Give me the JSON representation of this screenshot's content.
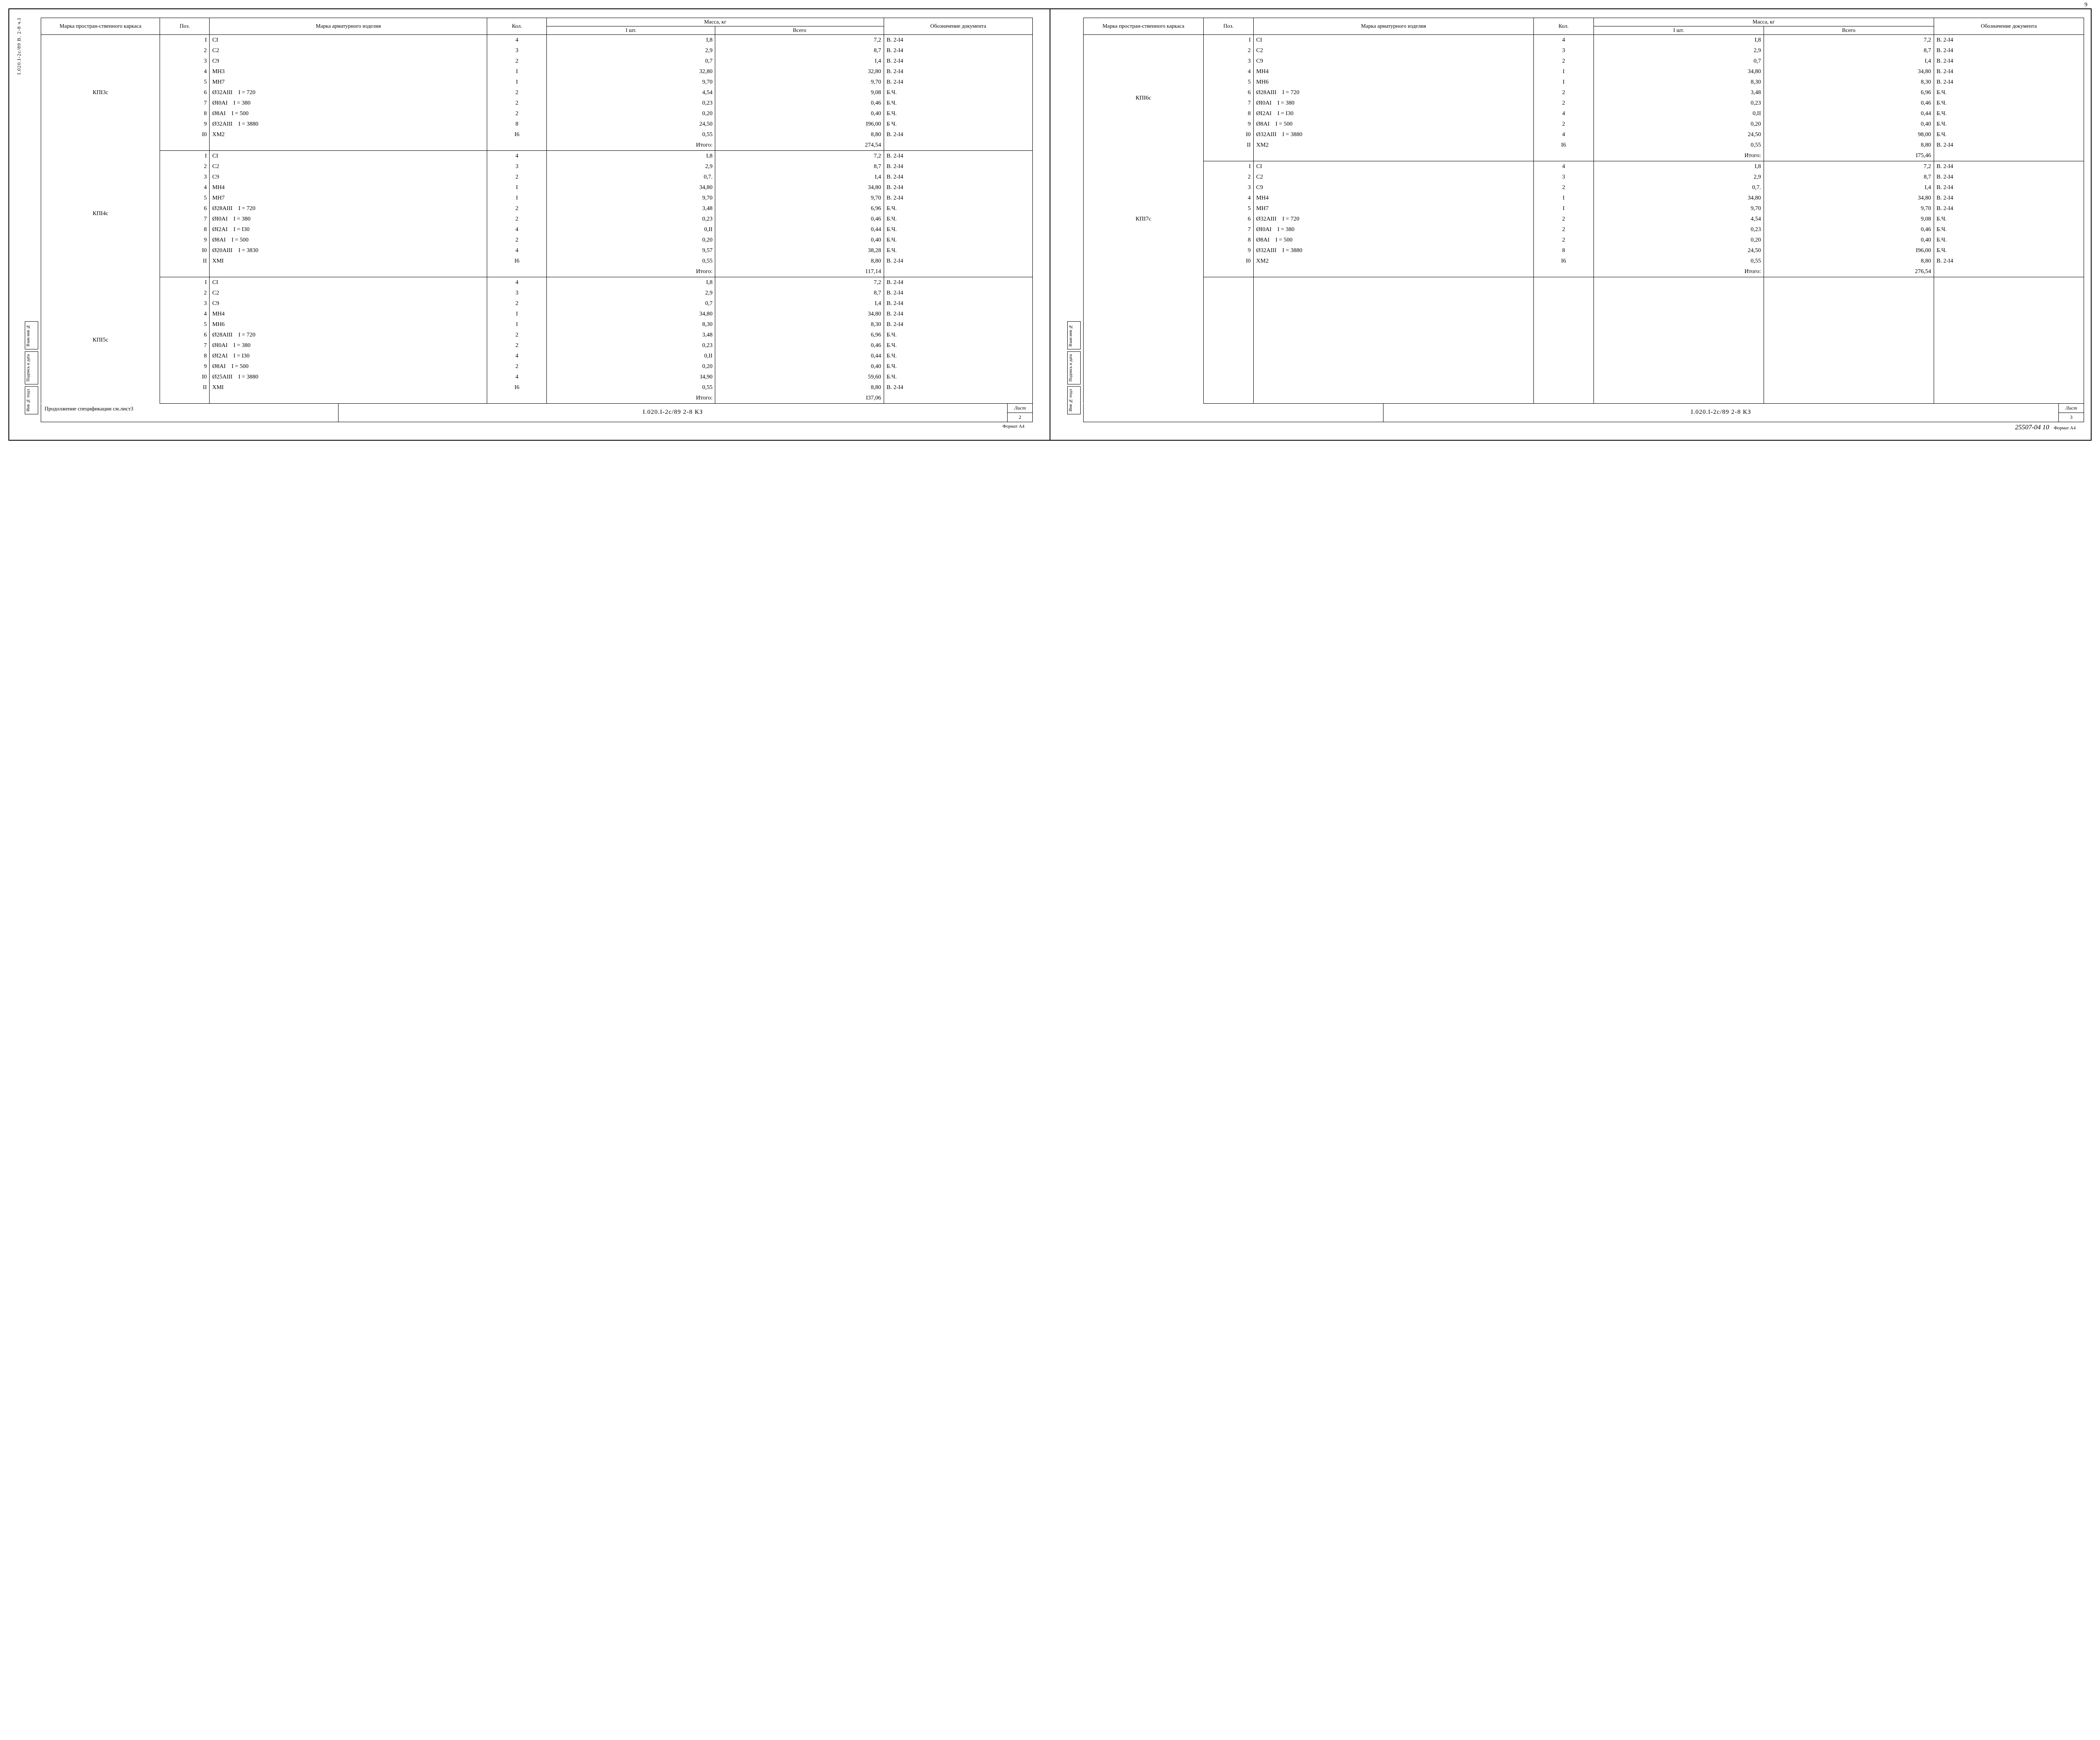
{
  "top_page_no": "9",
  "headers": {
    "mark": "Марка простран-ственного каркаса",
    "pos": "Поз.",
    "item": "Марка арматурного изделия",
    "qty": "Кол.",
    "mass": "Масса, кг",
    "mass1": "I шт.",
    "massT": "Всего",
    "doc": "Обозначение документа"
  },
  "itogo": "Итого:",
  "left_vlabel": "I.020.I-2с/89   В. 2-8  ч.I",
  "sidebar": [
    "Инв № подл",
    "Подпись и дата",
    "Взам инв №"
  ],
  "sections_left": [
    {
      "mark": "КПI3с",
      "rows": [
        {
          "pos": "I",
          "item": "СI",
          "qty": "4",
          "m1": "I,8",
          "mt": "7,2",
          "doc": "В. 2-I4"
        },
        {
          "pos": "2",
          "item": "С2",
          "qty": "3",
          "m1": "2,9",
          "mt": "8,7",
          "doc": "В. 2-I4"
        },
        {
          "pos": "3",
          "item": "С9",
          "qty": "2",
          "m1": "0,7",
          "mt": "I,4",
          "doc": "В. 2-I4"
        },
        {
          "pos": "4",
          "item": "МН3",
          "qty": "I",
          "m1": "32,80",
          "mt": "32,80",
          "doc": "В. 2-I4"
        },
        {
          "pos": "5",
          "item": "МН7",
          "qty": "I",
          "m1": "9,70",
          "mt": "9,70",
          "doc": "В. 2-I4"
        },
        {
          "pos": "6",
          "item": "Ø32АIII",
          "param": "I = 720",
          "qty": "2",
          "m1": "4,54",
          "mt": "9,08",
          "doc": "Б.Ч."
        },
        {
          "pos": "7",
          "item": "ØI0АI",
          "param": "I = 380",
          "qty": "2",
          "m1": "0,23",
          "mt": "0,46",
          "doc": "Б.Ч."
        },
        {
          "pos": "8",
          "item": "Ø8АI",
          "param": "I = 500",
          "qty": "2",
          "m1": "0,20",
          "mt": "0,40",
          "doc": "Б.Ч."
        },
        {
          "pos": "9",
          "item": "Ø32АIII",
          "param": "I = 3880",
          "qty": "8",
          "m1": "24,50",
          "mt": "I96,00",
          "doc": "Б Ч."
        },
        {
          "pos": "I0",
          "item": "ХМ2",
          "qty": "I6",
          "m1": "0,55",
          "mt": "8,80",
          "doc": "В. 2-I4"
        }
      ],
      "total": "274,54"
    },
    {
      "mark": "КПI4с",
      "rows": [
        {
          "pos": "I",
          "item": "СI",
          "qty": "4",
          "m1": "I,8",
          "mt": "7,2",
          "doc": "В. 2-I4"
        },
        {
          "pos": "2",
          "item": "С2",
          "qty": "3",
          "m1": "2,9",
          "mt": "8,7",
          "doc": "В. 2-I4"
        },
        {
          "pos": "3",
          "item": "С9",
          "qty": "2",
          "m1": "0,7.",
          "mt": "I,4",
          "doc": "В. 2-I4"
        },
        {
          "pos": "4",
          "item": "МН4",
          "qty": "I",
          "m1": "34,80",
          "mt": "34,80",
          "doc": "В. 2-I4"
        },
        {
          "pos": "5",
          "item": "МН7",
          "qty": "I",
          "m1": "9,70",
          "mt": "9,70",
          "doc": "В. 2-I4"
        },
        {
          "pos": "6",
          "item": "Ø28АIII",
          "param": "I = 720",
          "qty": "2",
          "m1": "3,48",
          "mt": "6,96",
          "doc": "Б.Ч."
        },
        {
          "pos": "7",
          "item": "ØI0АI",
          "param": "I = 380",
          "qty": "2",
          "m1": "0,23",
          "mt": "0,46",
          "doc": "Б.Ч."
        },
        {
          "pos": "8",
          "item": "ØI2АI",
          "param": "I = I30",
          "qty": "4",
          "m1": "0,II",
          "mt": "0,44",
          "doc": "Б.Ч."
        },
        {
          "pos": "9",
          "item": "Ø8АI",
          "param": "I = 500",
          "qty": "2",
          "m1": "0,20",
          "mt": "0,40",
          "doc": "Б.Ч."
        },
        {
          "pos": "I0",
          "item": "Ø20АIII",
          "param": "I = 3830",
          "qty": "4",
          "m1": "9,57",
          "mt": "38,28",
          "doc": "Б.Ч."
        },
        {
          "pos": "II",
          "item": "ХМI",
          "qty": "I6",
          "m1": "0,55",
          "mt": "8,80",
          "doc": "В. 2-I4"
        }
      ],
      "total": "117,14"
    },
    {
      "mark": "КПI5с",
      "rows": [
        {
          "pos": "I",
          "item": "СI",
          "qty": "4",
          "m1": "I,8",
          "mt": "7,2",
          "doc": "В. 2-I4"
        },
        {
          "pos": "2",
          "item": "С2",
          "qty": "3",
          "m1": "2,9",
          "mt": "8,7",
          "doc": "В. 2-I4"
        },
        {
          "pos": "3",
          "item": "С9",
          "qty": "2",
          "m1": "0,7",
          "mt": "I,4",
          "doc": "В. 2-I4"
        },
        {
          "pos": "4",
          "item": "МН4",
          "qty": "I",
          "m1": "34,80",
          "mt": "34,80",
          "doc": "В. 2-I4"
        },
        {
          "pos": "5",
          "item": "МН6",
          "qty": "I",
          "m1": "8,30",
          "mt": "8,30",
          "doc": "В. 2-I4"
        },
        {
          "pos": "6",
          "item": "Ø28АIII",
          "param": "I = 720",
          "qty": "2",
          "m1": "3,48",
          "mt": "6,96",
          "doc": "Б.Ч."
        },
        {
          "pos": "7",
          "item": "ØI0АI",
          "param": "I = 380",
          "qty": "2",
          "m1": "0,23",
          "mt": "0,46",
          "doc": "Б.Ч."
        },
        {
          "pos": "8",
          "item": "ØI2АI",
          "param": "I = I30",
          "qty": "4",
          "m1": "0,II",
          "mt": "0,44",
          "doc": "Б.Ч."
        },
        {
          "pos": "9",
          "item": "Ø8АI",
          "param": "I = 500",
          "qty": "2",
          "m1": "0,20",
          "mt": "0,40",
          "doc": "Б.Ч."
        },
        {
          "pos": "I0",
          "item": "Ø25АIII",
          "param": "I = 3880",
          "qty": "4",
          "m1": "I4,90",
          "mt": "59,60",
          "doc": "Б.Ч."
        },
        {
          "pos": "II",
          "item": "ХМI",
          "qty": "I6",
          "m1": "0,55",
          "mt": "8,80",
          "doc": "В. 2-I4"
        }
      ],
      "total": "I37,06"
    }
  ],
  "sections_right": [
    {
      "mark": "КПI6с",
      "rows": [
        {
          "pos": "I",
          "item": "СI",
          "qty": "4",
          "m1": "I,8",
          "mt": "7,2",
          "doc": "В. 2-I4"
        },
        {
          "pos": "2",
          "item": "С2",
          "qty": "3",
          "m1": "2,9",
          "mt": "8,7",
          "doc": "В. 2-I4"
        },
        {
          "pos": "3",
          "item": "С9",
          "qty": "2",
          "m1": "0,7",
          "mt": "I,4",
          "doc": "В. 2-I4"
        },
        {
          "pos": "4",
          "item": "МН4",
          "qty": "I",
          "m1": "34,80",
          "mt": "34,80",
          "doc": "В. 2-I4"
        },
        {
          "pos": "5",
          "item": "МН6",
          "qty": "I",
          "m1": "8,30",
          "mt": "8,30",
          "doc": "В. 2-I4"
        },
        {
          "pos": "6",
          "item": "Ø28АIII",
          "param": "I = 720",
          "qty": "2",
          "m1": "3,48",
          "mt": "6,96",
          "doc": "Б.Ч."
        },
        {
          "pos": "7",
          "item": "ØI0АI",
          "param": "I = 380",
          "qty": "2",
          "m1": "0,23",
          "mt": "0,46",
          "doc": "Б.Ч."
        },
        {
          "pos": "8",
          "item": "ØI2АI",
          "param": "I = I30",
          "qty": "4",
          "m1": "0,II",
          "mt": "0,44",
          "doc": "Б.Ч."
        },
        {
          "pos": "9",
          "item": "Ø8АI",
          "param": "I = 500",
          "qty": "2",
          "m1": "0,20",
          "mt": "0,40",
          "doc": "Б.Ч."
        },
        {
          "pos": "I0",
          "item": "Ø32АIII",
          "param": "I = 3880",
          "qty": "4",
          "m1": "24,50",
          "mt": "98,00",
          "doc": "Б.Ч."
        },
        {
          "pos": "II",
          "item": "ХМ2",
          "qty": "I6",
          "m1": "0,55",
          "mt": "8,80",
          "doc": "В. 2-I4"
        }
      ],
      "total": "I75,46"
    },
    {
      "mark": "КПI7с",
      "rows": [
        {
          "pos": "I",
          "item": "СI",
          "qty": "4",
          "m1": "I,8",
          "mt": "7,2",
          "doc": "В. 2-I4"
        },
        {
          "pos": "2",
          "item": "С2",
          "qty": "3",
          "m1": "2,9",
          "mt": "8,7",
          "doc": "В. 2-I4"
        },
        {
          "pos": "3",
          "item": "С9",
          "qty": "2",
          "m1": "0,7.",
          "mt": "I,4",
          "doc": "В. 2-I4"
        },
        {
          "pos": "4",
          "item": "МН4",
          "qty": "I",
          "m1": "34,80",
          "mt": "34,80",
          "doc": "В. 2-I4"
        },
        {
          "pos": "5",
          "item": "МН7",
          "qty": "I",
          "m1": "9,70",
          "mt": "9,70",
          "doc": "В. 2-I4"
        },
        {
          "pos": "6",
          "item": "Ø32АIII",
          "param": "I = 720",
          "qty": "2",
          "m1": "4,54",
          "mt": "9,08",
          "doc": "Б.Ч."
        },
        {
          "pos": "7",
          "item": "ØI0АI",
          "param": "I = 380",
          "qty": "2",
          "m1": "0,23",
          "mt": "0,46",
          "doc": "Б.Ч."
        },
        {
          "pos": "8",
          "item": "Ø8АI",
          "param": "I = 500",
          "qty": "2",
          "m1": "0,20",
          "mt": "0,40",
          "doc": "Б.Ч."
        },
        {
          "pos": "9",
          "item": "Ø32АIII",
          "param": "I = 3880",
          "qty": "8",
          "m1": "24,50",
          "mt": "I96,00",
          "doc": "Б.Ч."
        },
        {
          "pos": "I0",
          "item": "ХМ2",
          "qty": "I6",
          "m1": "0,55",
          "mt": "8,80",
          "doc": "В. 2-I4"
        }
      ],
      "total": "276,54"
    }
  ],
  "right_blank_rows": 12,
  "titleblock": {
    "left_note": "Продолжение спецификации см.лист3",
    "code": "I.020.I-2с/89   2-8 КЗ",
    "list_label": "Лист",
    "left_sheet": "2",
    "right_sheet": "3"
  },
  "format_label": "Формат А4",
  "handnote": "25507-04  10"
}
